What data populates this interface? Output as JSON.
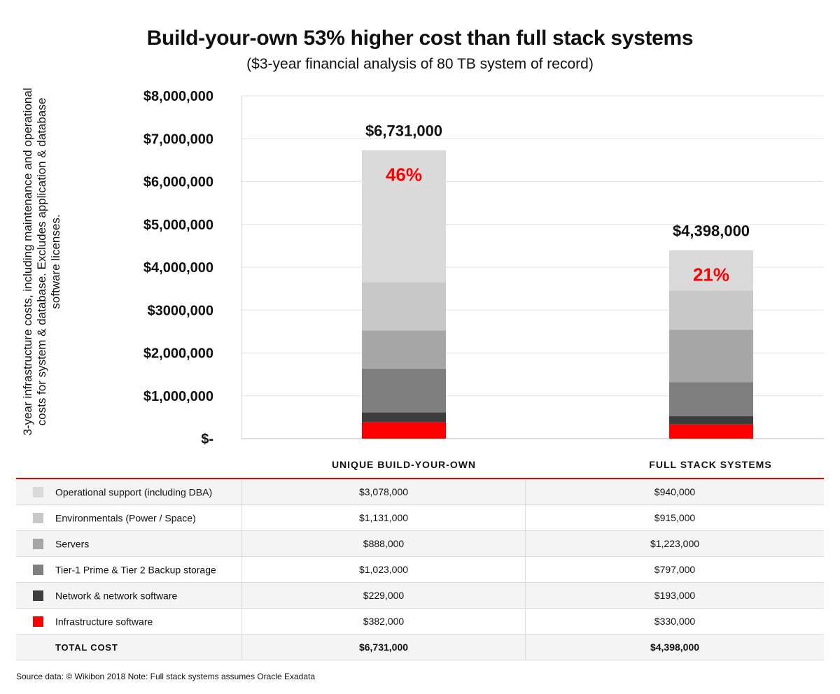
{
  "title": "Build-your-own 53% higher cost than full stack systems",
  "subtitle": "($3-year financial analysis of 80 TB system of record)",
  "chart_data": {
    "type": "bar",
    "stacked": true,
    "title": "Build-your-own 53% higher cost than full stack systems",
    "subtitle": "($3-year financial analysis of 80 TB system of record)",
    "ylabel": "3-year infrastructure costs, including maintenance and operational costs for system & database. Excludes application & database software licenses.",
    "ylim": [
      0,
      8000000
    ],
    "yticks": [
      0,
      1000000,
      2000000,
      3000000,
      4000000,
      5000000,
      6000000,
      7000000,
      8000000
    ],
    "ytick_labels": [
      "$-",
      "$1,000,000",
      "$2,000,000",
      "$3000,000",
      "$4,000,000",
      "$5,000,000",
      "$6,000,000",
      "$7,000,000",
      "$8,000,000"
    ],
    "grid": true,
    "categories": [
      "UNIQUE BUILD-YOUR-OWN",
      "FULL STACK SYSTEMS"
    ],
    "series": [
      {
        "name": "Infrastructure software",
        "color": "#ff0000",
        "values": [
          382000,
          330000
        ],
        "display": [
          "$382,000",
          "$330,000"
        ]
      },
      {
        "name": "Network & network software",
        "color": "#3d3d3d",
        "values": [
          229000,
          193000
        ],
        "display": [
          "$229,000",
          "$193,000"
        ]
      },
      {
        "name": "Tier-1 Prime & Tier 2 Backup storage",
        "color": "#7f7f7f",
        "values": [
          1023000,
          797000
        ],
        "display": [
          "$1,023,000",
          "$797,000"
        ]
      },
      {
        "name": "Servers",
        "color": "#a6a6a6",
        "values": [
          888000,
          1223000
        ],
        "display": [
          "$888,000",
          "$1,223,000"
        ]
      },
      {
        "name": "Environmentals (Power / Space)",
        "color": "#c8c8c8",
        "values": [
          1131000,
          915000
        ],
        "display": [
          "$1,131,000",
          "$915,000"
        ]
      },
      {
        "name": "Operational support (including DBA)",
        "color": "#dadada",
        "values": [
          3078000,
          940000
        ],
        "display": [
          "$3,078,000",
          "$940,000"
        ]
      }
    ],
    "totals": [
      6731000,
      4398000
    ],
    "total_labels": [
      "$6,731,000",
      "$4,398,000"
    ],
    "annotations": [
      "46%",
      "21%"
    ]
  },
  "table": {
    "rows": [
      {
        "label": "Operational support (including DBA)",
        "color": "#dadada",
        "v1": "$3,078,000",
        "v2": "$940,000"
      },
      {
        "label": "Environmentals (Power / Space)",
        "color": "#c8c8c8",
        "v1": "$1,131,000",
        "v2": "$915,000"
      },
      {
        "label": "Servers",
        "color": "#a6a6a6",
        "v1": "$888,000",
        "v2": "$1,223,000"
      },
      {
        "label": "Tier-1 Prime & Tier 2 Backup storage",
        "color": "#7f7f7f",
        "v1": "$1,023,000",
        "v2": "$797,000"
      },
      {
        "label": "Network & network software",
        "color": "#3d3d3d",
        "v1": "$229,000",
        "v2": "$193,000"
      },
      {
        "label": "Infrastructure software",
        "color": "#ff0000",
        "v1": "$382,000",
        "v2": "$330,000"
      }
    ],
    "total": {
      "label": "TOTAL COST",
      "v1": "$6,731,000",
      "v2": "$4,398,000"
    }
  },
  "source": "Source data: © Wikibon 2018 Note: Full stack systems assumes Oracle Exadata"
}
